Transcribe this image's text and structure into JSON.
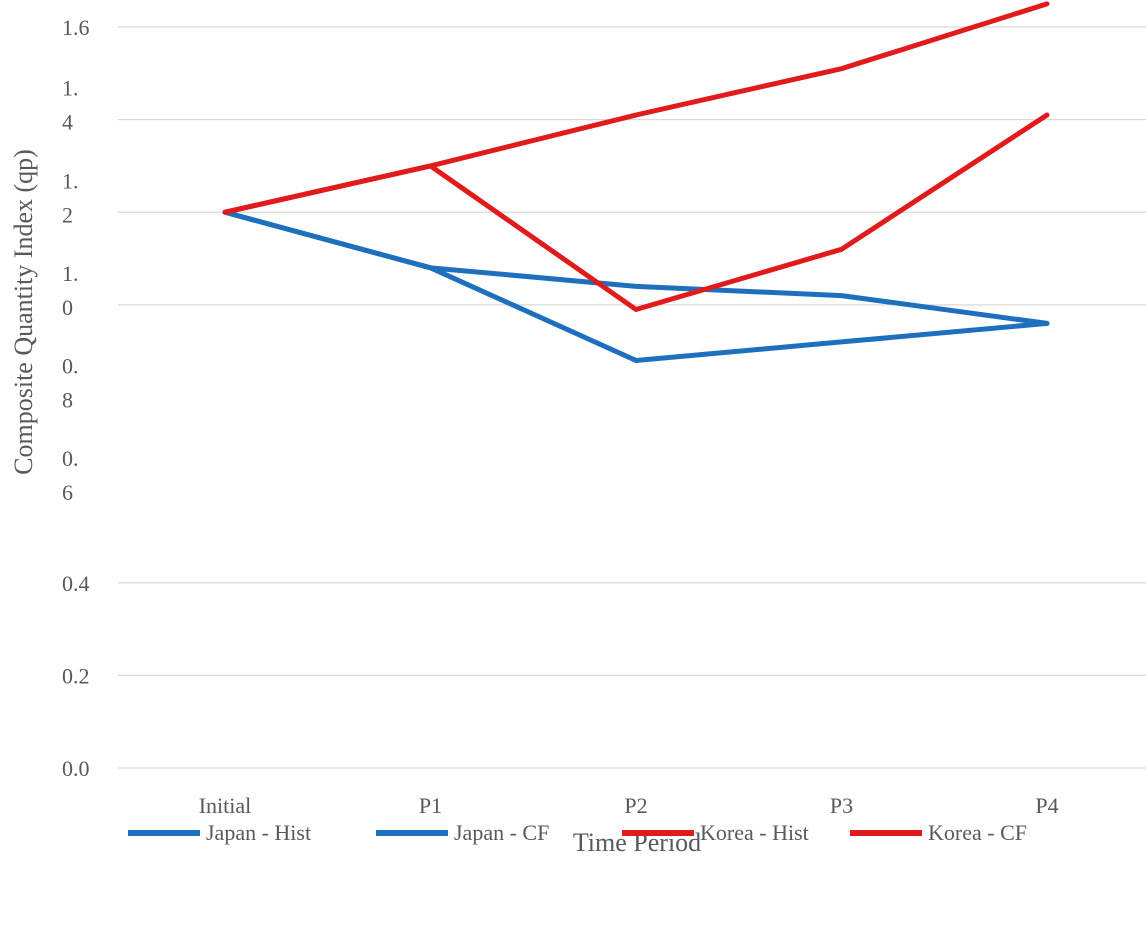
{
  "chart_data": {
    "type": "line",
    "xlabel": "Time Period",
    "ylabel": "Composite Quantity Index (qp)",
    "categories": [
      "Initial",
      "P1",
      "P2",
      "P3",
      "P4"
    ],
    "ylim": [
      0.0,
      1.6
    ],
    "y_tick_labels": [
      {
        "value": 0.0,
        "lines": [
          "0.0"
        ]
      },
      {
        "value": 0.2,
        "lines": [
          "0.2"
        ]
      },
      {
        "value": 0.4,
        "lines": [
          "0.4"
        ]
      },
      {
        "value": 0.6,
        "lines": [
          "0.",
          "6"
        ]
      },
      {
        "value": 0.8,
        "lines": [
          "0.",
          "8"
        ]
      },
      {
        "value": 1.0,
        "lines": [
          "1.",
          "0"
        ]
      },
      {
        "value": 1.2,
        "lines": [
          "1.",
          "2"
        ]
      },
      {
        "value": 1.4,
        "lines": [
          "1.",
          "4"
        ]
      },
      {
        "value": 1.6,
        "lines": [
          "1.6"
        ]
      }
    ],
    "gridlines": [
      0.0,
      0.2,
      0.4,
      1.0,
      1.2,
      1.4,
      1.6
    ],
    "legend_position": "bottom",
    "series": [
      {
        "name": "Japan - Hist",
        "color": "#1f6fbf",
        "values": [
          1.2,
          1.08,
          1.04,
          1.02,
          0.96
        ]
      },
      {
        "name": "Japan - CF",
        "color": "#1f6fbf",
        "values": [
          1.2,
          1.08,
          0.88,
          0.92,
          0.96
        ]
      },
      {
        "name": "Korea - Hist",
        "color": "#e11b1b",
        "values": [
          1.2,
          1.3,
          1.41,
          1.51,
          1.65
        ]
      },
      {
        "name": "Korea - CF",
        "color": "#e11b1b",
        "values": [
          1.2,
          1.3,
          0.99,
          1.12,
          1.41
        ]
      }
    ]
  }
}
